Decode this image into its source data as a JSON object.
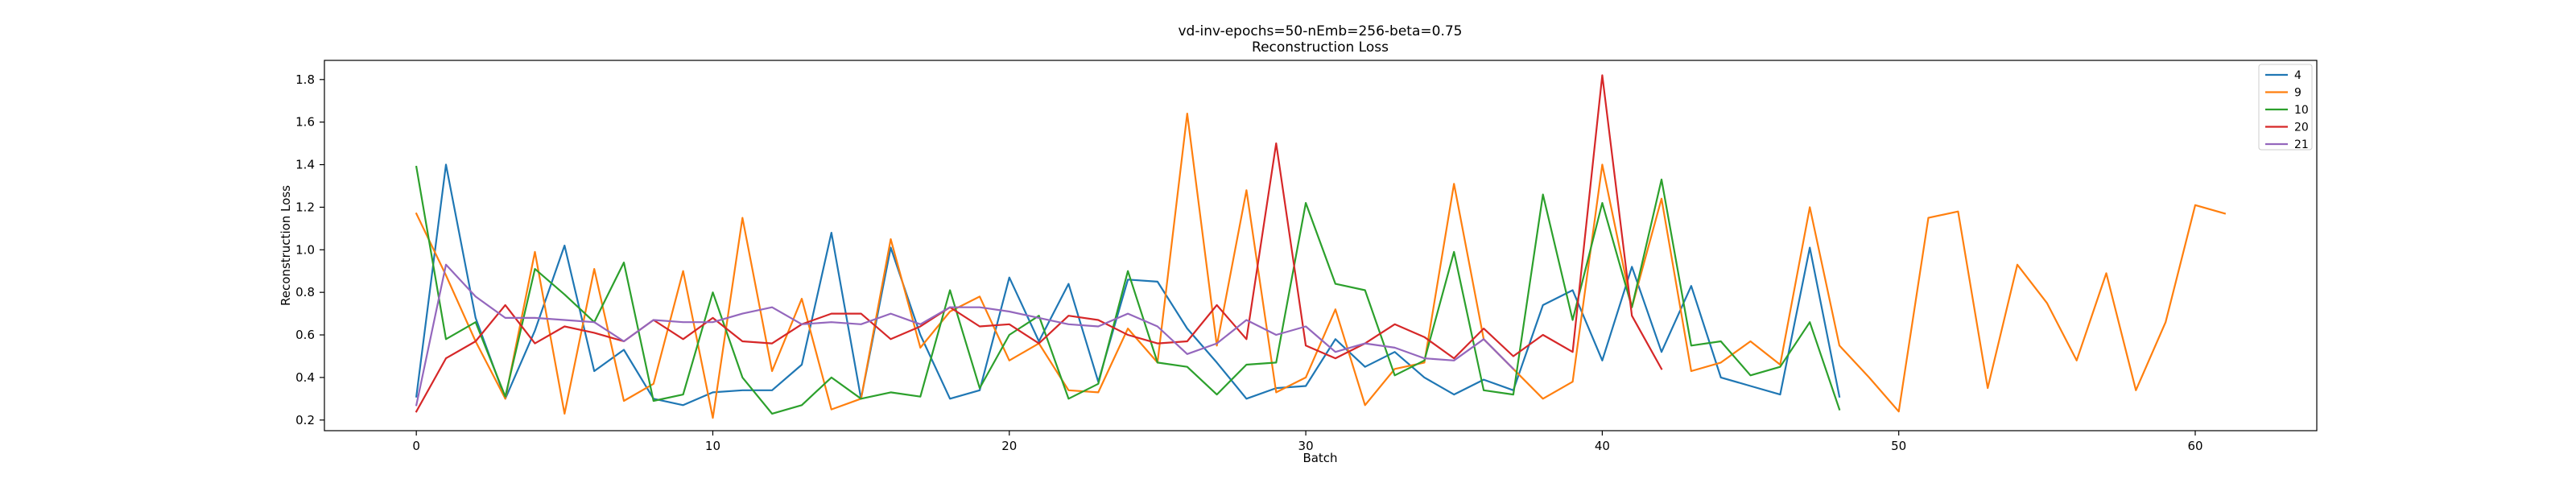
{
  "chart_data": {
    "type": "line",
    "title": "vd-inv-epochs=50-nEmb=256-beta=0.75",
    "subtitle": "Reconstruction Loss",
    "xlabel": "Batch",
    "ylabel": "Reconstruction Loss",
    "xlim": [
      -3.1,
      64.1
    ],
    "ylim": [
      0.15,
      1.89
    ],
    "xticks": [
      0,
      10,
      20,
      30,
      40,
      50,
      60
    ],
    "yticks": [
      0.2,
      0.4,
      0.6,
      0.8,
      1.0,
      1.2,
      1.4,
      1.6,
      1.8
    ],
    "grid": false,
    "legend_position": "top-right",
    "series": [
      {
        "name": "4",
        "color": "#1f77b4",
        "values": [
          0.31,
          1.4,
          0.68,
          0.3,
          0.62,
          1.02,
          0.43,
          0.53,
          0.3,
          0.27,
          0.33,
          0.34,
          0.34,
          0.46,
          1.08,
          0.3,
          1.01,
          0.6,
          0.3,
          0.34,
          0.87,
          0.57,
          0.84,
          0.38,
          0.86,
          0.85,
          0.63,
          0.47,
          0.3,
          0.35,
          0.36,
          0.58,
          0.45,
          0.52,
          0.4,
          0.32,
          0.39,
          0.34,
          0.74,
          0.81,
          0.48,
          0.92,
          0.52,
          0.83,
          0.4,
          0.36,
          0.32,
          1.01,
          0.31
        ]
      },
      {
        "name": "9",
        "color": "#ff7f0e",
        "values": [
          1.17,
          0.88,
          0.57,
          0.3,
          0.99,
          0.23,
          0.91,
          0.29,
          0.37,
          0.9,
          0.21,
          1.15,
          0.43,
          0.77,
          0.25,
          0.3,
          1.05,
          0.54,
          0.71,
          0.78,
          0.48,
          0.56,
          0.34,
          0.33,
          0.63,
          0.47,
          1.64,
          0.55,
          1.28,
          0.33,
          0.4,
          0.72,
          0.27,
          0.44,
          0.47,
          1.31,
          0.58,
          0.44,
          0.3,
          0.38,
          1.4,
          0.73,
          1.24,
          0.43,
          0.47,
          0.57,
          0.46,
          1.2,
          0.55,
          0.4,
          0.24,
          1.15,
          1.18,
          0.35,
          0.93,
          0.75,
          0.48,
          0.89,
          0.34,
          0.66,
          1.21,
          1.17
        ]
      },
      {
        "name": "10",
        "color": "#2ca02c",
        "values": [
          1.39,
          0.58,
          0.66,
          0.31,
          0.91,
          0.79,
          0.66,
          0.94,
          0.29,
          0.32,
          0.8,
          0.4,
          0.23,
          0.27,
          0.4,
          0.3,
          0.33,
          0.31,
          0.81,
          0.35,
          0.6,
          0.69,
          0.3,
          0.37,
          0.9,
          0.47,
          0.45,
          0.32,
          0.46,
          0.47,
          1.22,
          0.84,
          0.81,
          0.41,
          0.48,
          0.99,
          0.34,
          0.32,
          1.26,
          0.67,
          1.22,
          0.73,
          1.33,
          0.55,
          0.57,
          0.41,
          0.45,
          0.66,
          0.25
        ]
      },
      {
        "name": "20",
        "color": "#d62728",
        "values": [
          0.24,
          0.49,
          0.57,
          0.74,
          0.56,
          0.64,
          0.61,
          0.57,
          0.67,
          0.58,
          0.68,
          0.57,
          0.56,
          0.65,
          0.7,
          0.7,
          0.58,
          0.64,
          0.73,
          0.64,
          0.65,
          0.56,
          0.69,
          0.67,
          0.6,
          0.56,
          0.57,
          0.74,
          0.58,
          1.5,
          0.55,
          0.49,
          0.56,
          0.65,
          0.59,
          0.49,
          0.63,
          0.5,
          0.6,
          0.52,
          1.82,
          0.69,
          0.44
        ]
      },
      {
        "name": "21",
        "color": "#9467bd",
        "values": [
          0.27,
          0.93,
          0.78,
          0.68,
          0.68,
          0.67,
          0.66,
          0.57,
          0.67,
          0.66,
          0.66,
          0.7,
          0.73,
          0.65,
          0.66,
          0.65,
          0.7,
          0.65,
          0.73,
          0.73,
          0.71,
          0.68,
          0.65,
          0.64,
          0.7,
          0.64,
          0.51,
          0.56,
          0.67,
          0.6,
          0.64,
          0.52,
          0.56,
          0.54,
          0.49,
          0.48,
          0.58,
          0.44
        ]
      }
    ]
  }
}
